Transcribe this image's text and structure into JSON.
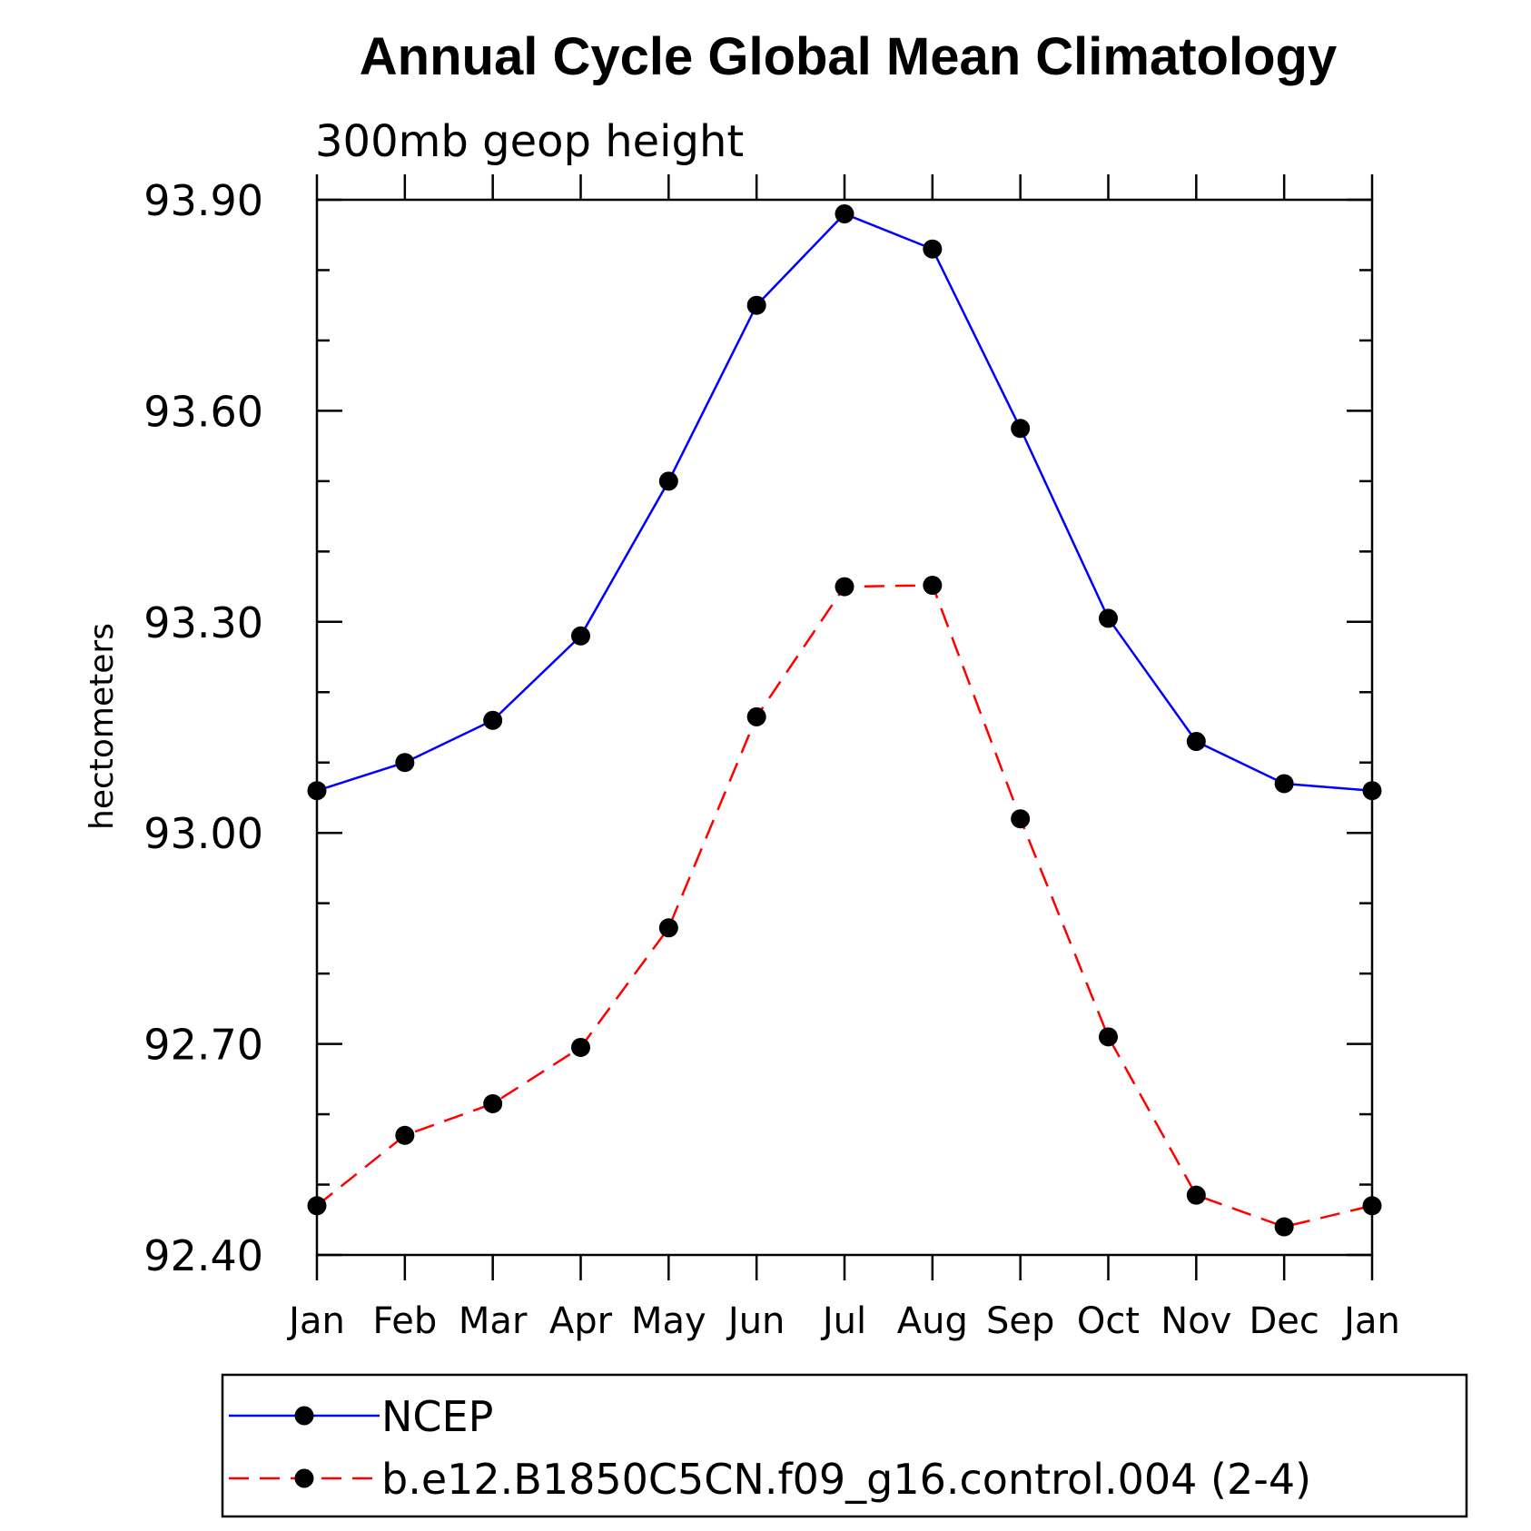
{
  "chart_data": {
    "type": "line",
    "title": "Annual Cycle Global Mean Climatology",
    "subtitle": "300mb geop height",
    "ylabel": "hectometers",
    "ylim": [
      92.4,
      93.9
    ],
    "yticks": [
      "93.90",
      "93.60",
      "93.30",
      "93.00",
      "92.70",
      "92.40"
    ],
    "ytick_values": [
      93.9,
      93.6,
      93.3,
      93.0,
      92.7,
      92.4
    ],
    "categories": [
      "Jan",
      "Feb",
      "Mar",
      "Apr",
      "May",
      "Jun",
      "Jul",
      "Aug",
      "Sep",
      "Oct",
      "Nov",
      "Dec",
      "Jan"
    ],
    "grid": false,
    "legend_position": "bottom",
    "series": [
      {
        "name": "NCEP",
        "color": "#0000ff",
        "dash": "solid",
        "values": [
          93.06,
          93.1,
          93.16,
          93.28,
          93.5,
          93.75,
          93.88,
          93.83,
          93.575,
          93.305,
          93.13,
          93.07,
          93.06
        ]
      },
      {
        "name": "b.e12.B1850C5CN.f09_g16.control.004 (2-4)",
        "color": "#ff0000",
        "dash": "dashed",
        "values": [
          92.47,
          92.57,
          92.615,
          92.695,
          92.865,
          93.165,
          93.35,
          93.352,
          93.02,
          92.71,
          92.485,
          92.44,
          92.47
        ]
      }
    ]
  }
}
